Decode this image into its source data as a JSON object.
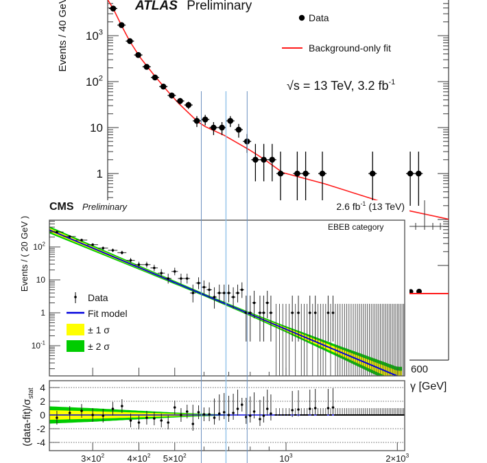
{
  "chart_data": [
    {
      "name": "atlas",
      "type": "scatter",
      "title": "ATLAS",
      "subtitle": "Preliminary",
      "ylabel": "Events / 40 GeV",
      "xlabel_visible": "γ [GeV]",
      "x_tick_visible": "600",
      "yscale": "log",
      "yticks": [
        {
          "value": 1000,
          "base": "10",
          "exp": "3"
        },
        {
          "value": 100,
          "base": "10",
          "exp": "2"
        },
        {
          "value": 10,
          "base": "10",
          "exp": ""
        },
        {
          "value": 1,
          "base": "1",
          "exp": ""
        }
      ],
      "legend": {
        "placement": "top-right",
        "data": "Data",
        "fit": "Background-only fit"
      },
      "energy_label": "√s = 13 TeV, 3.2 fb",
      "energy_label_exp": "-1",
      "colors": {
        "data": "#000000",
        "fit": "#ff0000"
      },
      "data": {
        "x": [
          170,
          210,
          250,
          290,
          330,
          370,
          410,
          450,
          490,
          530,
          570,
          610,
          650,
          690,
          730,
          770,
          810,
          850,
          890,
          930,
          970,
          1050,
          1090,
          1170,
          1410,
          1590,
          1630
        ],
        "y": [
          3900,
          1700,
          760,
          380,
          210,
          123,
          78,
          50,
          38,
          31,
          14,
          15,
          10,
          10,
          14,
          9,
          5,
          2,
          2,
          2,
          1,
          1,
          1,
          1,
          1,
          1,
          1
        ]
      },
      "fit": {
        "x": [
          140,
          170,
          210,
          249,
          300,
          367,
          430,
          485,
          573,
          610,
          700,
          820,
          895,
          980,
          1180,
          1410,
          1570,
          1780
        ],
        "y": [
          6500,
          3900,
          1650,
          760,
          330,
          136,
          62,
          33,
          13.6,
          10.5,
          6.8,
          3.3,
          2.0,
          1.05,
          0.6,
          0.28,
          0.16,
          0.1
        ]
      }
    },
    {
      "name": "cms",
      "type": "scatter",
      "title": "CMS",
      "subtitle": "Preliminary",
      "lumi": "2.6 fb",
      "lumi_exp": "-1",
      "lumi_suffix": " (13 TeV)",
      "category": "EBEB category",
      "ylabel": "Events / ( 20 GeV )",
      "ratio_ylabel": "(data-fit)/σ",
      "ratio_ylabel_sub": "stat",
      "xscale": "log",
      "xlim": [
        229,
        2100
      ],
      "ylim": [
        0.012,
        650
      ],
      "ratio_ylim": [
        -5,
        5
      ],
      "yticks": [
        {
          "value": 100,
          "base": "10",
          "exp": "2"
        },
        {
          "value": 10,
          "base": "10",
          "exp": ""
        },
        {
          "value": 1,
          "base": "1",
          "exp": ""
        },
        {
          "value": 0.1,
          "base": "10",
          "exp": "-1"
        }
      ],
      "xticks": [
        {
          "value": 300,
          "base": "3×10",
          "exp": "2"
        },
        {
          "value": 400,
          "base": "4×10",
          "exp": "2"
        },
        {
          "value": 500,
          "base": "5×10",
          "exp": "2"
        },
        {
          "value": 1000,
          "base": "10",
          "exp": "3"
        },
        {
          "value": 2000,
          "base": "2×10",
          "exp": "3"
        }
      ],
      "ratio_yticks": [
        4,
        2,
        0,
        -2,
        -4
      ],
      "legend": {
        "placement": "center-left",
        "data": "Data",
        "fit": "Fit model",
        "sigma1": "± 1 σ",
        "sigma2": "± 2 σ"
      },
      "colors": {
        "data": "#000000",
        "fit": "#0000dd",
        "sigma1": "#ffff00",
        "sigma2": "#00cc00"
      },
      "data": {
        "x": [
          240,
          260,
          280,
          300,
          320,
          340,
          360,
          380,
          400,
          420,
          440,
          460,
          480,
          500,
          520,
          540,
          560,
          580,
          600,
          620,
          640,
          660,
          680,
          700,
          720,
          740,
          760,
          780,
          800,
          820,
          850,
          870,
          890,
          910,
          1040,
          1080,
          1160,
          1200,
          1300,
          1340
        ],
        "y": [
          284,
          206,
          162,
          117,
          92,
          79,
          67,
          39,
          29,
          29,
          23,
          16,
          11,
          18,
          11,
          11,
          4,
          8,
          6,
          5,
          3,
          4,
          4,
          4,
          3,
          4,
          5,
          1,
          1,
          2,
          1,
          1,
          2,
          1,
          1,
          1,
          1,
          1,
          1,
          1
        ],
        "pull": [
          -0.4,
          0.3,
          0.6,
          0.0,
          -0.1,
          0.9,
          1.3,
          -0.8,
          -1.1,
          -0.4,
          -0.5,
          -0.8,
          -1.1,
          1.1,
          0.0,
          0.5,
          -1.3,
          0.4,
          0.1,
          0.1,
          -0.4,
          0.2,
          0.4,
          0.0,
          0.3,
          0.9,
          1.5,
          -0.3,
          -0.1,
          0.5,
          -0.6,
          -0.1,
          0.9,
          0.2,
          0.7,
          0.8,
          0.9,
          1.0,
          1.0,
          1.1
        ]
      },
      "empty_bins": {
        "from": 900,
        "to": 2100,
        "width": 20,
        "upper_error": 1.87
      },
      "fit": {
        "x": [
          229,
          2000
        ],
        "y": [
          330,
          0.012
        ]
      },
      "band_sigma1_rel": {
        "x": [
          229,
          400,
          600,
          800,
          1000,
          1400,
          2000
        ],
        "y": [
          0.14,
          0.08,
          0.05,
          0.07,
          0.12,
          0.25,
          0.45
        ]
      },
      "ratio_band_sigma1": {
        "x": [
          229,
          300,
          400,
          500,
          600,
          700,
          2100
        ],
        "y": [
          0.7,
          0.55,
          0.35,
          0.2,
          0.1,
          0.03,
          0.0
        ]
      },
      "reference_lines_mass": [
        590,
        688,
        785
      ]
    }
  ]
}
